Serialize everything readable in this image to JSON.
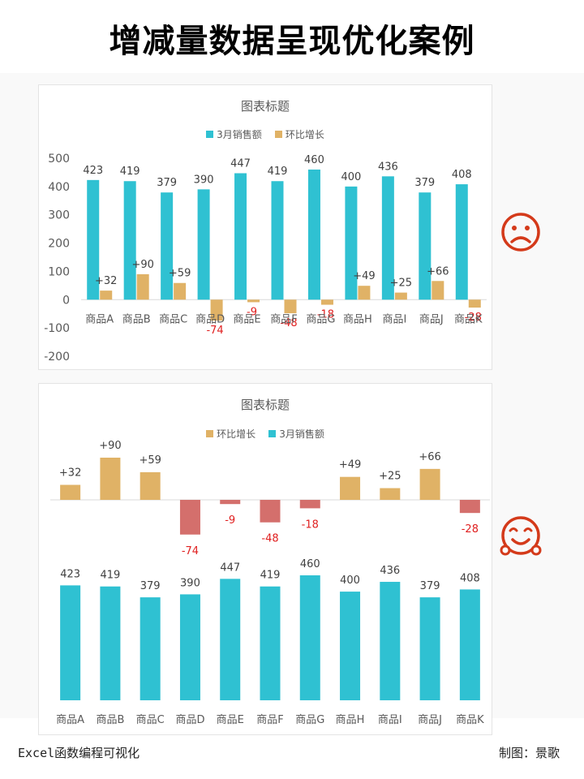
{
  "page": {
    "title": "增减量数据呈现优化案例",
    "footer_left": "Excel函数编程可视化",
    "footer_right": "制图：景歌"
  },
  "colors": {
    "sales": "#2fc1d2",
    "growth": "#e0b266",
    "negative_bar": "#d46f6c",
    "negative_label": "#e02020",
    "face": "#d43a1a"
  },
  "icons": {
    "top": "sad-face-icon",
    "bottom": "happy-face-icon"
  },
  "chart_data": [
    {
      "type": "bar",
      "title": "图表标题",
      "legend": [
        "3月销售额",
        "环比增长"
      ],
      "legend_position": "top",
      "categories": [
        "商品A",
        "商品B",
        "商品C",
        "商品D",
        "商品E",
        "商品F",
        "商品G",
        "商品H",
        "商品I",
        "商品J",
        "商品K"
      ],
      "series": [
        {
          "name": "3月销售额",
          "values": [
            423,
            419,
            379,
            390,
            447,
            419,
            460,
            400,
            436,
            379,
            408
          ],
          "labels": [
            "423",
            "419",
            "379",
            "390",
            "447",
            "419",
            "460",
            "400",
            "436",
            "379",
            "408"
          ]
        },
        {
          "name": "环比增长",
          "values": [
            32,
            90,
            59,
            -74,
            -9,
            -48,
            -18,
            49,
            25,
            66,
            -28
          ],
          "labels": [
            "+32",
            "+90",
            "+59",
            "-74",
            "-9",
            "-48",
            "-18",
            "+49",
            "+25",
            "+66",
            "-28"
          ]
        }
      ],
      "ylim": [
        -200,
        500
      ],
      "y_ticks": [
        "500",
        "400",
        "300",
        "200",
        "100",
        "0",
        "-100",
        "-200"
      ],
      "grid": false
    },
    {
      "type": "bar",
      "title": "图表标题",
      "legend": [
        "环比增长",
        "3月销售额"
      ],
      "legend_position": "top",
      "categories": [
        "商品A",
        "商品B",
        "商品C",
        "商品D",
        "商品E",
        "商品F",
        "商品G",
        "商品H",
        "商品I",
        "商品J",
        "商品K"
      ],
      "series": [
        {
          "name": "环比增长",
          "values": [
            32,
            90,
            59,
            -74,
            -9,
            -48,
            -18,
            49,
            25,
            66,
            -28
          ],
          "labels": [
            "+32",
            "+90",
            "+59",
            "-74",
            "-9",
            "-48",
            "-18",
            "+49",
            "+25",
            "+66",
            "-28"
          ]
        },
        {
          "name": "3月销售额",
          "values": [
            423,
            419,
            379,
            390,
            447,
            419,
            460,
            400,
            436,
            379,
            408
          ],
          "labels": [
            "423",
            "419",
            "379",
            "390",
            "447",
            "419",
            "460",
            "400",
            "436",
            "379",
            "408"
          ]
        }
      ],
      "grid": false
    }
  ]
}
